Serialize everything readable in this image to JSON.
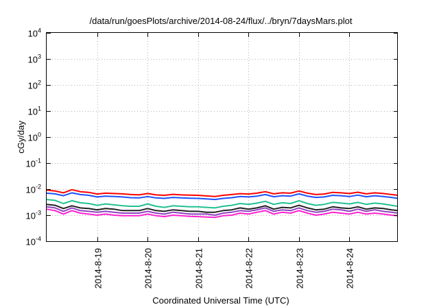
{
  "chart_data": {
    "type": "line",
    "title": "/data/run/goesPlots/archive/2014-08-24/flux/../bryn/7daysMars.plot",
    "xlabel": "Coordinated Universal Time (UTC)",
    "ylabel": "cGy/day",
    "yscale": "log",
    "ylim": [
      0.0001,
      10000
    ],
    "xlim": [
      "2014-08-18 00:00",
      "2014-08-24 23:00"
    ],
    "y_ticks": [
      {
        "base": "10",
        "exp": "-4"
      },
      {
        "base": "10",
        "exp": "-3"
      },
      {
        "base": "10",
        "exp": "-2"
      },
      {
        "base": "10",
        "exp": "-1"
      },
      {
        "base": "10",
        "exp": "0"
      },
      {
        "base": "10",
        "exp": "1"
      },
      {
        "base": "10",
        "exp": "2"
      },
      {
        "base": "10",
        "exp": "3"
      },
      {
        "base": "10",
        "exp": "4"
      }
    ],
    "x_ticks": [
      {
        "date": "2014-08-19",
        "label": "2014-8-19"
      },
      {
        "date": "2014-08-20",
        "label": "2014-8-20"
      },
      {
        "date": "2014-08-21",
        "label": "2014-8-21"
      },
      {
        "date": "2014-08-22",
        "label": "2014-8-22"
      },
      {
        "date": "2014-08-23",
        "label": "2014-8-23"
      },
      {
        "date": "2014-08-24",
        "label": "2014-8-24"
      }
    ],
    "grid": true,
    "x": [
      "2014-08-18 00:00",
      "2014-08-18 04:00",
      "2014-08-18 08:00",
      "2014-08-18 12:00",
      "2014-08-18 16:00",
      "2014-08-18 20:00",
      "2014-08-19 00:00",
      "2014-08-19 04:00",
      "2014-08-19 08:00",
      "2014-08-19 12:00",
      "2014-08-19 16:00",
      "2014-08-19 20:00",
      "2014-08-20 00:00",
      "2014-08-20 04:00",
      "2014-08-20 08:00",
      "2014-08-20 12:00",
      "2014-08-20 16:00",
      "2014-08-20 20:00",
      "2014-08-21 00:00",
      "2014-08-21 04:00",
      "2014-08-21 08:00",
      "2014-08-21 12:00",
      "2014-08-21 16:00",
      "2014-08-21 20:00",
      "2014-08-22 00:00",
      "2014-08-22 04:00",
      "2014-08-22 08:00",
      "2014-08-22 12:00",
      "2014-08-22 16:00",
      "2014-08-22 20:00",
      "2014-08-23 00:00",
      "2014-08-23 04:00",
      "2014-08-23 08:00",
      "2014-08-23 12:00",
      "2014-08-23 16:00",
      "2014-08-23 20:00",
      "2014-08-24 00:00",
      "2014-08-24 04:00",
      "2014-08-24 08:00",
      "2014-08-24 12:00",
      "2014-08-24 16:00",
      "2014-08-24 20:00",
      "2014-08-24 23:00"
    ],
    "series": [
      {
        "color": "#ff0000",
        "values": [
          0.0092,
          0.0085,
          0.0072,
          0.0095,
          0.008,
          0.0075,
          0.0065,
          0.007,
          0.0068,
          0.0066,
          0.0062,
          0.006,
          0.0068,
          0.006,
          0.0058,
          0.0063,
          0.006,
          0.0059,
          0.0058,
          0.0055,
          0.0052,
          0.0058,
          0.0062,
          0.0067,
          0.0065,
          0.007,
          0.008,
          0.0066,
          0.0072,
          0.007,
          0.0085,
          0.007,
          0.0062,
          0.0065,
          0.0075,
          0.0072,
          0.0068,
          0.0076,
          0.0066,
          0.0072,
          0.0068,
          0.0062,
          0.0058
        ]
      },
      {
        "color": "#1e50ff",
        "values": [
          0.007,
          0.0066,
          0.0056,
          0.0072,
          0.0062,
          0.0058,
          0.005,
          0.0054,
          0.0052,
          0.005,
          0.0047,
          0.0046,
          0.0052,
          0.0046,
          0.0044,
          0.0048,
          0.0046,
          0.0045,
          0.0044,
          0.0042,
          0.004,
          0.0044,
          0.0047,
          0.0052,
          0.005,
          0.0054,
          0.0062,
          0.0051,
          0.0056,
          0.0054,
          0.0066,
          0.0054,
          0.0048,
          0.005,
          0.0058,
          0.0056,
          0.0052,
          0.0059,
          0.0051,
          0.0056,
          0.0052,
          0.0048,
          0.0044
        ]
      },
      {
        "color": "#20c090",
        "values": [
          0.004,
          0.0037,
          0.0028,
          0.0036,
          0.003,
          0.0028,
          0.0024,
          0.0027,
          0.0025,
          0.0023,
          0.0022,
          0.0022,
          0.0027,
          0.0022,
          0.002,
          0.0023,
          0.0022,
          0.0021,
          0.0021,
          0.002,
          0.0019,
          0.0022,
          0.0024,
          0.0028,
          0.0026,
          0.0029,
          0.0034,
          0.0026,
          0.003,
          0.0028,
          0.0036,
          0.0028,
          0.0024,
          0.0026,
          0.0031,
          0.0029,
          0.0027,
          0.0031,
          0.0026,
          0.0029,
          0.0027,
          0.0024,
          0.0022
        ]
      },
      {
        "color": "#202020",
        "values": [
          0.0026,
          0.0024,
          0.0018,
          0.0023,
          0.0019,
          0.0018,
          0.0016,
          0.0018,
          0.0017,
          0.0015,
          0.0015,
          0.0015,
          0.0018,
          0.0015,
          0.0014,
          0.0016,
          0.0015,
          0.0014,
          0.0014,
          0.0013,
          0.0013,
          0.0015,
          0.0016,
          0.0019,
          0.0017,
          0.0019,
          0.0023,
          0.0017,
          0.002,
          0.0019,
          0.0024,
          0.0019,
          0.0016,
          0.0017,
          0.0021,
          0.0019,
          0.0018,
          0.0021,
          0.0017,
          0.0019,
          0.0018,
          0.0016,
          0.0015
        ]
      },
      {
        "color": "#9040c0",
        "values": [
          0.0021,
          0.0019,
          0.0014,
          0.0019,
          0.0015,
          0.0014,
          0.0013,
          0.0014,
          0.0013,
          0.0012,
          0.0012,
          0.0012,
          0.0014,
          0.0012,
          0.0011,
          0.0013,
          0.0012,
          0.0011,
          0.0011,
          0.0011,
          0.001,
          0.0012,
          0.0013,
          0.0015,
          0.0014,
          0.0016,
          0.0019,
          0.0014,
          0.0016,
          0.0015,
          0.0019,
          0.0015,
          0.0013,
          0.0014,
          0.0017,
          0.0016,
          0.0014,
          0.0017,
          0.0014,
          0.0016,
          0.0014,
          0.0013,
          0.0012
        ]
      },
      {
        "color": "#ff20d0",
        "values": [
          0.0017,
          0.0015,
          0.0011,
          0.0015,
          0.0012,
          0.0011,
          0.001,
          0.0011,
          0.001,
          0.00095,
          0.00095,
          0.00095,
          0.0011,
          0.00095,
          0.00088,
          0.001,
          0.00095,
          0.0009,
          0.00088,
          0.00085,
          0.00082,
          0.00095,
          0.001,
          0.0012,
          0.0011,
          0.0013,
          0.0015,
          0.0011,
          0.0013,
          0.0012,
          0.0015,
          0.0012,
          0.001,
          0.0011,
          0.0013,
          0.0012,
          0.0011,
          0.0013,
          0.0011,
          0.0012,
          0.0011,
          0.001,
          0.00095
        ]
      }
    ]
  }
}
